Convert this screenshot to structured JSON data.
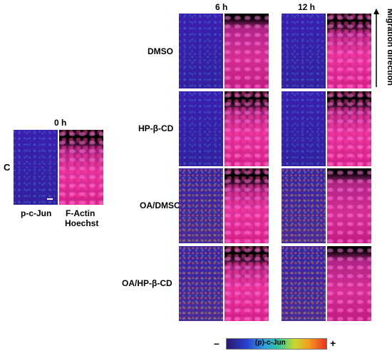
{
  "time_labels": {
    "t0": "0 h",
    "t6": "6 h",
    "t12": "12 h"
  },
  "panel_letter": "C",
  "channel_labels": {
    "cjun": "p-c-Jun",
    "factin": "F-Actin",
    "hoechst": "Hoechst"
  },
  "row_labels": [
    "DMSO",
    "HP-β-CD",
    "OA/DMSO",
    "OA/HP-β-CD"
  ],
  "side_label": "Migration direction",
  "colorbar": {
    "minus": "–",
    "plus": "+",
    "label": "(p)-c-Jun"
  }
}
